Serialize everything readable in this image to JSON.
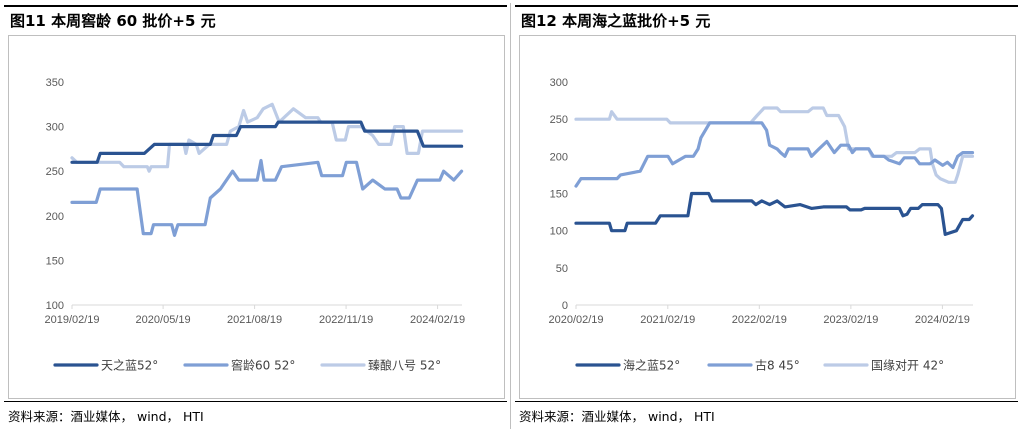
{
  "colors": {
    "dark": "#2a5391",
    "medium": "#7f9fd5",
    "light": "#bccbe6",
    "axis": "#d9d9d9"
  },
  "left": {
    "title": "图11 本周窖龄 60 批价+5 元",
    "source": "资料来源：酒业媒体， wind， HTI",
    "chart_data": {
      "type": "line",
      "x_ticks": [
        "2019/02/19",
        "2020/05/19",
        "2021/08/19",
        "2022/11/19",
        "2024/02/19"
      ],
      "y_ticks": [
        "100",
        "150",
        "200",
        "250",
        "300",
        "350"
      ],
      "ylim": [
        100,
        350
      ],
      "xlim": [
        "2019-02-19",
        "2024-06-20"
      ],
      "series": [
        {
          "name": "天之蓝52°",
          "color": "#2a5391",
          "width": 3.2,
          "points": [
            [
              "2019-02-19",
              260
            ],
            [
              "2019-06-25",
              260
            ],
            [
              "2019-07-10",
              270
            ],
            [
              "2020-02-15",
              270
            ],
            [
              "2020-04-05",
              280
            ],
            [
              "2021-01-10",
              280
            ],
            [
              "2021-01-25",
              290
            ],
            [
              "2021-05-20",
              290
            ],
            [
              "2021-06-10",
              300
            ],
            [
              "2021-12-01",
              300
            ],
            [
              "2021-12-15",
              305
            ],
            [
              "2023-02-01",
              305
            ],
            [
              "2023-02-20",
              295
            ],
            [
              "2023-11-10",
              295
            ],
            [
              "2023-12-10",
              278
            ],
            [
              "2024-06-18",
              278
            ]
          ]
        },
        {
          "name": "窖龄60 52°",
          "color": "#7f9fd5",
          "width": 3.2,
          "points": [
            [
              "2019-02-19",
              215
            ],
            [
              "2019-06-20",
              215
            ],
            [
              "2019-07-10",
              230
            ],
            [
              "2020-01-10",
              230
            ],
            [
              "2020-02-10",
              180
            ],
            [
              "2020-03-20",
              180
            ],
            [
              "2020-04-01",
              190
            ],
            [
              "2020-07-01",
              190
            ],
            [
              "2020-07-15",
              178
            ],
            [
              "2020-08-01",
              190
            ],
            [
              "2020-12-15",
              190
            ],
            [
              "2021-01-10",
              220
            ],
            [
              "2021-03-01",
              230
            ],
            [
              "2021-05-01",
              250
            ],
            [
              "2021-06-01",
              240
            ],
            [
              "2021-09-01",
              240
            ],
            [
              "2021-09-20",
              262
            ],
            [
              "2021-10-05",
              240
            ],
            [
              "2021-12-01",
              240
            ],
            [
              "2022-01-01",
              255
            ],
            [
              "2022-07-01",
              260
            ],
            [
              "2022-07-20",
              245
            ],
            [
              "2022-11-01",
              245
            ],
            [
              "2022-11-20",
              260
            ],
            [
              "2023-01-10",
              260
            ],
            [
              "2023-02-10",
              230
            ],
            [
              "2023-04-01",
              240
            ],
            [
              "2023-06-01",
              230
            ],
            [
              "2023-08-01",
              230
            ],
            [
              "2023-08-20",
              220
            ],
            [
              "2023-10-01",
              220
            ],
            [
              "2023-11-10",
              240
            ],
            [
              "2024-03-01",
              240
            ],
            [
              "2024-03-20",
              250
            ],
            [
              "2024-05-10",
              240
            ],
            [
              "2024-06-18",
              250
            ]
          ]
        },
        {
          "name": "臻酿八号 52°",
          "color": "#bccbe6",
          "width": 3.2,
          "points": [
            [
              "2019-02-19",
              265
            ],
            [
              "2019-03-15",
              260
            ],
            [
              "2019-10-15",
              260
            ],
            [
              "2019-11-05",
              255
            ],
            [
              "2020-03-01",
              255
            ],
            [
              "2020-03-10",
              250
            ],
            [
              "2020-03-20",
              255
            ],
            [
              "2020-06-10",
              255
            ],
            [
              "2020-06-20",
              280
            ],
            [
              "2020-09-01",
              280
            ],
            [
              "2020-09-10",
              270
            ],
            [
              "2020-09-25",
              285
            ],
            [
              "2020-11-01",
              280
            ],
            [
              "2020-11-15",
              270
            ],
            [
              "2021-01-05",
              280
            ],
            [
              "2021-04-01",
              280
            ],
            [
              "2021-04-20",
              295
            ],
            [
              "2021-06-01",
              300
            ],
            [
              "2021-06-25",
              318
            ],
            [
              "2021-07-15",
              305
            ],
            [
              "2021-09-01",
              310
            ],
            [
              "2021-10-01",
              320
            ],
            [
              "2021-11-15",
              325
            ],
            [
              "2021-12-20",
              305
            ],
            [
              "2022-03-01",
              320
            ],
            [
              "2022-05-01",
              310
            ],
            [
              "2022-07-01",
              310
            ],
            [
              "2022-07-15",
              305
            ],
            [
              "2022-09-10",
              305
            ],
            [
              "2022-10-01",
              285
            ],
            [
              "2022-11-15",
              285
            ],
            [
              "2022-12-01",
              300
            ],
            [
              "2023-02-01",
              300
            ],
            [
              "2023-04-01",
              290
            ],
            [
              "2023-05-01",
              280
            ],
            [
              "2023-07-01",
              280
            ],
            [
              "2023-07-20",
              300
            ],
            [
              "2023-09-01",
              300
            ],
            [
              "2023-09-20",
              270
            ],
            [
              "2023-11-15",
              270
            ],
            [
              "2023-12-05",
              295
            ],
            [
              "2024-06-18",
              295
            ]
          ]
        }
      ]
    }
  },
  "right": {
    "title": "图12 本周海之蓝批价+5 元",
    "source": "资料来源：酒业媒体， wind， HTI",
    "chart_data": {
      "type": "line",
      "x_ticks": [
        "2020/02/19",
        "2021/02/19",
        "2022/02/19",
        "2023/02/19",
        "2024/02/19"
      ],
      "y_ticks": [
        "0",
        "50",
        "100",
        "150",
        "200",
        "250",
        "300"
      ],
      "ylim": [
        0,
        300
      ],
      "xlim": [
        "2020-02-19",
        "2024-06-20"
      ],
      "series": [
        {
          "name": "海之蓝52°",
          "color": "#2a5391",
          "width": 3.2,
          "points": [
            [
              "2020-02-19",
              110
            ],
            [
              "2020-07-01",
              110
            ],
            [
              "2020-07-10",
              100
            ],
            [
              "2020-09-01",
              100
            ],
            [
              "2020-09-10",
              110
            ],
            [
              "2021-01-01",
              110
            ],
            [
              "2021-01-20",
              120
            ],
            [
              "2021-05-10",
              120
            ],
            [
              "2021-05-25",
              150
            ],
            [
              "2021-08-01",
              150
            ],
            [
              "2021-08-15",
              140
            ],
            [
              "2022-01-20",
              140
            ],
            [
              "2022-02-05",
              135
            ],
            [
              "2022-03-01",
              140
            ],
            [
              "2022-04-01",
              135
            ],
            [
              "2022-05-01",
              140
            ],
            [
              "2022-06-01",
              132
            ],
            [
              "2022-08-01",
              135
            ],
            [
              "2022-09-15",
              130
            ],
            [
              "2022-11-01",
              132
            ],
            [
              "2023-02-01",
              132
            ],
            [
              "2023-02-15",
              128
            ],
            [
              "2023-04-01",
              128
            ],
            [
              "2023-04-15",
              130
            ],
            [
              "2023-09-01",
              130
            ],
            [
              "2023-09-15",
              120
            ],
            [
              "2023-10-01",
              122
            ],
            [
              "2023-10-15",
              130
            ],
            [
              "2023-11-15",
              130
            ],
            [
              "2023-12-01",
              135
            ],
            [
              "2024-02-01",
              135
            ],
            [
              "2024-02-15",
              130
            ],
            [
              "2024-03-01",
              95
            ],
            [
              "2024-04-15",
              100
            ],
            [
              "2024-05-10",
              115
            ],
            [
              "2024-06-05",
              115
            ],
            [
              "2024-06-18",
              120
            ]
          ]
        },
        {
          "name": "古8 45°",
          "color": "#7f9fd5",
          "width": 3.2,
          "points": [
            [
              "2020-02-19",
              160
            ],
            [
              "2020-03-10",
              170
            ],
            [
              "2020-08-01",
              170
            ],
            [
              "2020-08-15",
              175
            ],
            [
              "2020-11-01",
              180
            ],
            [
              "2020-12-01",
              200
            ],
            [
              "2021-02-20",
              200
            ],
            [
              "2021-03-10",
              190
            ],
            [
              "2021-05-01",
              200
            ],
            [
              "2021-06-01",
              200
            ],
            [
              "2021-06-20",
              210
            ],
            [
              "2021-07-01",
              225
            ],
            [
              "2021-08-05",
              245
            ],
            [
              "2022-03-01",
              245
            ],
            [
              "2022-03-20",
              235
            ],
            [
              "2022-04-01",
              215
            ],
            [
              "2022-05-01",
              210
            ],
            [
              "2022-05-15",
              205
            ],
            [
              "2022-06-01",
              200
            ],
            [
              "2022-06-15",
              210
            ],
            [
              "2022-09-01",
              210
            ],
            [
              "2022-09-15",
              200
            ],
            [
              "2022-10-15",
              210
            ],
            [
              "2022-11-15",
              220
            ],
            [
              "2022-12-15",
              205
            ],
            [
              "2023-01-10",
              215
            ],
            [
              "2023-02-10",
              215
            ],
            [
              "2023-02-25",
              205
            ],
            [
              "2023-03-10",
              210
            ],
            [
              "2023-05-01",
              210
            ],
            [
              "2023-05-20",
              200
            ],
            [
              "2023-07-01",
              200
            ],
            [
              "2023-07-20",
              195
            ],
            [
              "2023-09-01",
              190
            ],
            [
              "2023-09-20",
              198
            ],
            [
              "2023-11-01",
              198
            ],
            [
              "2023-11-20",
              190
            ],
            [
              "2024-01-01",
              190
            ],
            [
              "2024-01-20",
              195
            ],
            [
              "2024-02-20",
              188
            ],
            [
              "2024-03-10",
              192
            ],
            [
              "2024-04-01",
              185
            ],
            [
              "2024-04-20",
              200
            ],
            [
              "2024-05-10",
              205
            ],
            [
              "2024-06-18",
              205
            ]
          ]
        },
        {
          "name": "国缘对开 42°",
          "color": "#bccbe6",
          "width": 3.2,
          "points": [
            [
              "2020-02-19",
              250
            ],
            [
              "2020-07-01",
              250
            ],
            [
              "2020-07-10",
              260
            ],
            [
              "2020-08-01",
              250
            ],
            [
              "2021-02-15",
              250
            ],
            [
              "2021-03-01",
              245
            ],
            [
              "2022-01-15",
              245
            ],
            [
              "2022-02-10",
              255
            ],
            [
              "2022-03-10",
              265
            ],
            [
              "2022-05-01",
              265
            ],
            [
              "2022-05-15",
              260
            ],
            [
              "2022-09-01",
              260
            ],
            [
              "2022-09-20",
              265
            ],
            [
              "2022-11-01",
              265
            ],
            [
              "2022-11-15",
              255
            ],
            [
              "2023-01-01",
              255
            ],
            [
              "2023-01-25",
              240
            ],
            [
              "2023-02-10",
              210
            ],
            [
              "2023-05-01",
              210
            ],
            [
              "2023-05-15",
              200
            ],
            [
              "2023-08-01",
              200
            ],
            [
              "2023-08-20",
              205
            ],
            [
              "2023-11-01",
              205
            ],
            [
              "2023-11-20",
              210
            ],
            [
              "2024-01-01",
              210
            ],
            [
              "2024-01-10",
              190
            ],
            [
              "2024-01-25",
              175
            ],
            [
              "2024-02-10",
              170
            ],
            [
              "2024-03-15",
              165
            ],
            [
              "2024-04-10",
              165
            ],
            [
              "2024-04-20",
              175
            ],
            [
              "2024-05-10",
              200
            ],
            [
              "2024-06-18",
              200
            ]
          ]
        }
      ]
    }
  }
}
